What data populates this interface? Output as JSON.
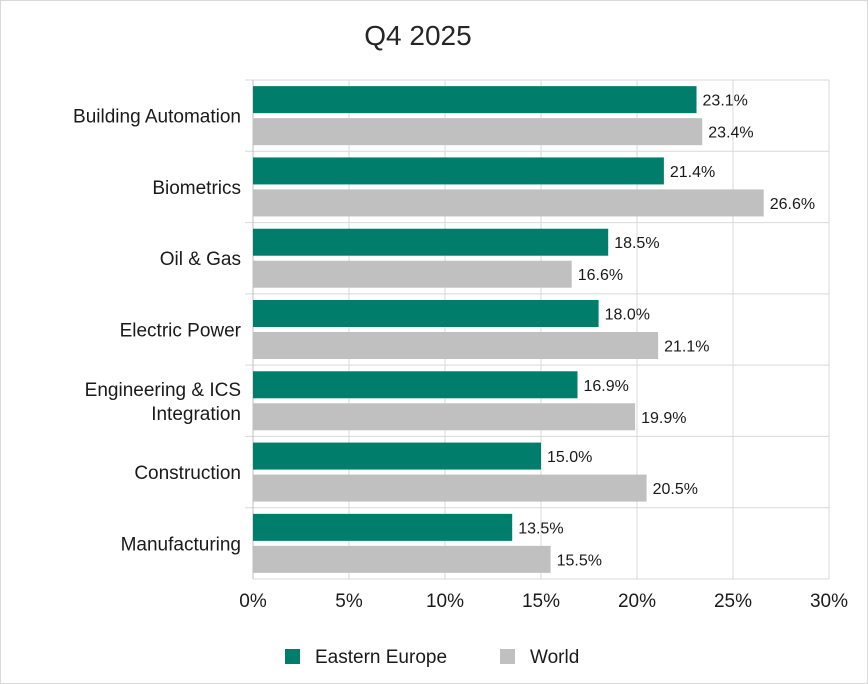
{
  "chart_data": {
    "type": "bar",
    "orientation": "horizontal",
    "title": "Q4 2025",
    "categories": [
      "Building Automation",
      "Biometrics",
      "Oil & Gas",
      "Electric Power",
      "Engineering & ICS Integration",
      "Construction",
      "Manufacturing"
    ],
    "category_lines": [
      [
        "Building Automation"
      ],
      [
        "Biometrics"
      ],
      [
        "Oil & Gas"
      ],
      [
        "Electric Power"
      ],
      [
        "Engineering & ICS",
        "Integration"
      ],
      [
        "Construction"
      ],
      [
        "Manufacturing"
      ]
    ],
    "series": [
      {
        "name": "Eastern Europe",
        "color": "#007d6b",
        "values": [
          23.1,
          21.4,
          18.5,
          18.0,
          16.9,
          15.0,
          13.5
        ],
        "labels": [
          "23.1%",
          "21.4%",
          "18.5%",
          "18.0%",
          "16.9%",
          "15.0%",
          "13.5%"
        ]
      },
      {
        "name": "World",
        "color": "#c0c0c0",
        "values": [
          23.4,
          26.6,
          16.6,
          21.1,
          19.9,
          20.5,
          15.5
        ],
        "labels": [
          "23.4%",
          "26.6%",
          "16.6%",
          "21.1%",
          "19.9%",
          "20.5%",
          "15.5%"
        ]
      }
    ],
    "xlim": [
      0,
      30
    ],
    "xticks": [
      0,
      5,
      10,
      15,
      20,
      25,
      30
    ],
    "xtick_labels": [
      "0%",
      "5%",
      "10%",
      "15%",
      "20%",
      "25%",
      "30%"
    ],
    "xlabel": "",
    "ylabel": "",
    "grid": "vertical",
    "legend_position": "bottom"
  }
}
